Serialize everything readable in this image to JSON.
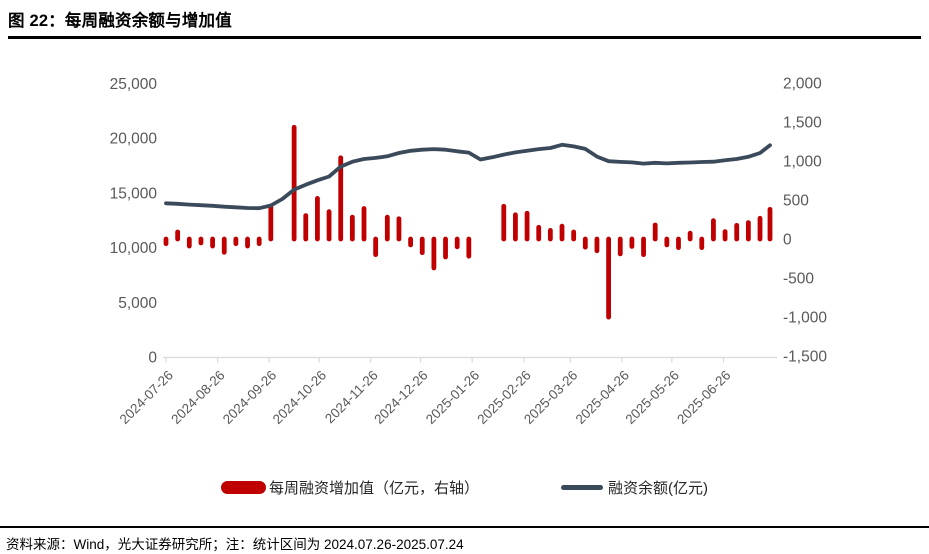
{
  "figure": {
    "title": "图 22：每周融资余额与增加值",
    "source_note": "资料来源：Wind，光大证券研究所；注：统计区间为 2024.07.26-2025.07.24"
  },
  "legend": {
    "bars_label": "每周融资增加值（亿元，右轴）",
    "line_label": "融资余额(亿元)"
  },
  "colors": {
    "bar": "#c00000",
    "line": "#3b4a5a",
    "axis_text": "#595959",
    "axis_line": "#d9d9d9",
    "background": "#ffffff"
  },
  "chart_data": {
    "type": "bar",
    "note": "combo chart: weekly bars on right axis + balance line on left axis",
    "grid": false,
    "legend_position": "bottom",
    "x": [
      "2024-07-26",
      "2024-08-02",
      "2024-08-09",
      "2024-08-16",
      "2024-08-23",
      "2024-08-30",
      "2024-09-06",
      "2024-09-13",
      "2024-09-20",
      "2024-09-27",
      "2024-10-04",
      "2024-10-11",
      "2024-10-18",
      "2024-10-25",
      "2024-11-01",
      "2024-11-08",
      "2024-11-15",
      "2024-11-22",
      "2024-11-29",
      "2024-12-06",
      "2024-12-13",
      "2024-12-20",
      "2024-12-27",
      "2025-01-03",
      "2025-01-10",
      "2025-01-17",
      "2025-01-24",
      "2025-01-31",
      "2025-02-07",
      "2025-02-14",
      "2025-02-21",
      "2025-02-28",
      "2025-03-07",
      "2025-03-14",
      "2025-03-21",
      "2025-03-28",
      "2025-04-04",
      "2025-04-11",
      "2025-04-18",
      "2025-04-25",
      "2025-05-02",
      "2025-05-09",
      "2025-05-16",
      "2025-05-23",
      "2025-05-30",
      "2025-06-06",
      "2025-06-13",
      "2025-06-20",
      "2025-06-27",
      "2025-07-04",
      "2025-07-11",
      "2025-07-18",
      "2025-07-24"
    ],
    "series": [
      {
        "name": "每周融资增加值（亿元，右轴）",
        "type": "bar",
        "axis": "right",
        "color": "#c00000",
        "values": [
          -60,
          90,
          -90,
          -50,
          -90,
          -170,
          -60,
          -90,
          -60,
          410,
          10,
          1430,
          300,
          520,
          350,
          1040,
          280,
          390,
          -200,
          280,
          260,
          -75,
          -175,
          -370,
          -230,
          -100,
          -220,
          10,
          15,
          420,
          310,
          330,
          150,
          110,
          165,
          90,
          -105,
          -150,
          -1000,
          -190,
          -95,
          -200,
          180,
          -75,
          -110,
          75,
          -110,
          235,
          95,
          175,
          210,
          265,
          380
        ]
      },
      {
        "name": "融资余额(亿元)",
        "type": "line",
        "axis": "left",
        "color": "#3b4a5a",
        "values": [
          14050,
          14000,
          13930,
          13880,
          13820,
          13740,
          13680,
          13620,
          13600,
          13850,
          14450,
          15300,
          15750,
          16150,
          16500,
          17400,
          17850,
          18100,
          18200,
          18350,
          18650,
          18850,
          18950,
          19000,
          18950,
          18800,
          18680,
          18050,
          18250,
          18500,
          18700,
          18850,
          19000,
          19100,
          19400,
          19250,
          19020,
          18320,
          17900,
          17830,
          17790,
          17680,
          17750,
          17700,
          17750,
          17780,
          17820,
          17850,
          17980,
          18100,
          18300,
          18650,
          19350
        ]
      }
    ],
    "x_tick_labels": [
      "2024-07-26",
      "2024-08-26",
      "2024-09-26",
      "2024-10-26",
      "2024-11-26",
      "2024-12-26",
      "2025-01-26",
      "2025-02-26",
      "2025-03-26",
      "2025-04-26",
      "2025-05-26",
      "2025-06-26"
    ],
    "left_axis": {
      "min": 0,
      "max": 25000,
      "step": 5000,
      "tick_labels": [
        "0",
        "5,000",
        "10,000",
        "15,000",
        "20,000",
        "25,000"
      ]
    },
    "right_axis": {
      "min": -1500,
      "max": 2000,
      "step": 500,
      "tick_labels": [
        "-1,500",
        "-1,000",
        "-500",
        "0",
        "500",
        "1,000",
        "1,500",
        "2,000"
      ]
    }
  }
}
